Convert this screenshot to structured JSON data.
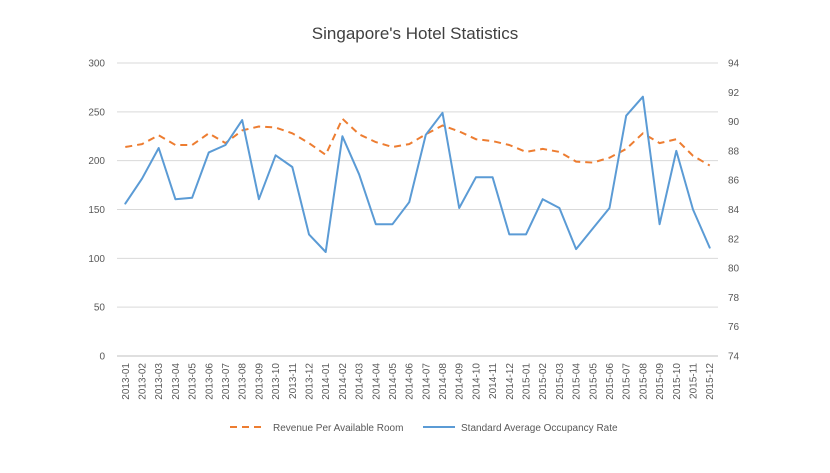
{
  "chart_data": {
    "type": "line",
    "title": "Singapore's Hotel Statistics",
    "categories": [
      "2013-01",
      "2013-02",
      "2013-03",
      "2013-04",
      "2013-05",
      "2013-06",
      "2013-07",
      "2013-08",
      "2013-09",
      "2013-10",
      "2013-11",
      "2013-12",
      "2014-01",
      "2014-02",
      "2014-03",
      "2014-04",
      "2014-05",
      "2014-06",
      "2014-07",
      "2014-08",
      "2014-09",
      "2014-10",
      "2014-11",
      "2014-12",
      "2015-01",
      "2015-02",
      "2015-03",
      "2015-04",
      "2015-05",
      "2015-06",
      "2015-07",
      "2015-08",
      "2015-09",
      "2015-10",
      "2015-11",
      "2015-12"
    ],
    "series": [
      {
        "name": "Revenue Per Available Room",
        "axis": "left",
        "style": "dashed",
        "color": "#ED7D31",
        "values": [
          214,
          217,
          226,
          216,
          216,
          228,
          218,
          231,
          235,
          234,
          228,
          218,
          206,
          243,
          227,
          219,
          214,
          217,
          227,
          236,
          230,
          222,
          220,
          216,
          209,
          212,
          209,
          199,
          198,
          203,
          212,
          228,
          218,
          222,
          205,
          195
        ]
      },
      {
        "name": "Standard Average Occupancy Rate",
        "axis": "right",
        "style": "solid",
        "color": "#5B9BD5",
        "values": [
          84.4,
          86.1,
          88.2,
          84.7,
          84.8,
          87.9,
          88.4,
          90.1,
          84.7,
          87.7,
          86.9,
          82.3,
          81.1,
          89,
          86.4,
          83,
          83,
          84.5,
          89.1,
          90.6,
          84.1,
          86.2,
          86.2,
          82.3,
          82.3,
          84.7,
          84.1,
          81.3,
          82.7,
          84.1,
          90.4,
          91.7,
          83,
          88,
          84,
          81.4
        ]
      }
    ],
    "y_left": {
      "ylim": [
        0,
        300
      ],
      "ticks": [
        "0",
        "50",
        "100",
        "150",
        "200",
        "250",
        "300"
      ]
    },
    "y_right": {
      "ylim": [
        74,
        94
      ],
      "ticks": [
        "74",
        "76",
        "78",
        "80",
        "82",
        "84",
        "86",
        "88",
        "90",
        "92",
        "94"
      ]
    },
    "grid": "horizontal",
    "legend_position": "bottom",
    "colors": {
      "grid": "#D9D9D9",
      "axis_text": "#595959",
      "title": "#404040"
    }
  }
}
